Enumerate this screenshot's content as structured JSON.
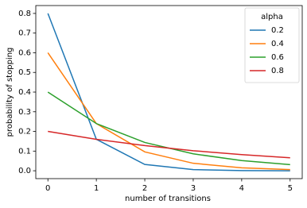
{
  "chart_data": {
    "type": "line",
    "x_label": "number of transitions",
    "y_label": "probability of stopping",
    "x": [
      0,
      1,
      2,
      3,
      4,
      5
    ],
    "series": [
      {
        "name": "0.2",
        "color": "#1f77b4",
        "values": [
          0.8,
          0.16,
          0.032,
          0.006,
          0.001,
          0.0
        ]
      },
      {
        "name": "0.4",
        "color": "#ff7f0e",
        "values": [
          0.6,
          0.24,
          0.096,
          0.038,
          0.015,
          0.006
        ]
      },
      {
        "name": "0.6",
        "color": "#2ca02c",
        "values": [
          0.4,
          0.24,
          0.144,
          0.086,
          0.052,
          0.031
        ]
      },
      {
        "name": "0.8",
        "color": "#d62728",
        "values": [
          0.2,
          0.16,
          0.128,
          0.102,
          0.082,
          0.066
        ]
      }
    ],
    "legend_title": "alpha",
    "legend": "upper right",
    "xlim": [
      -0.25,
      5.25
    ],
    "xticks": [
      0,
      1,
      2,
      3,
      4,
      5
    ],
    "ylim": [
      -0.04,
      0.84
    ],
    "yticks": [
      {
        "value": 0,
        "label": "0.0"
      },
      0.1,
      0.2,
      0.3,
      0.4,
      0.5,
      0.6,
      0.7,
      0.8
    ],
    "grid": false
  }
}
